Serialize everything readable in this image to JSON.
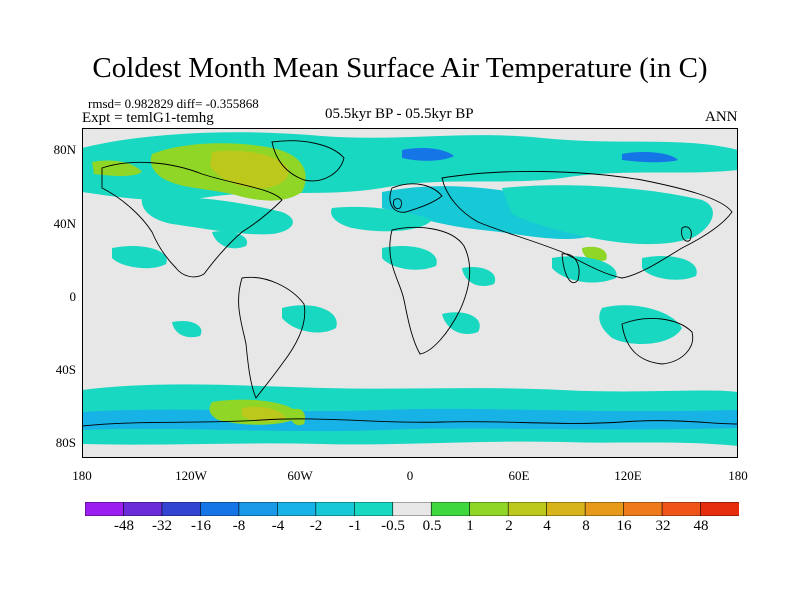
{
  "title": "Coldest Month Mean Surface Air Temperature (in C)",
  "stats_text": "rmsd= 0.982829 diff= -0.355868",
  "experiment_text": "Expt = temlG1-temhg",
  "period_text": "05.5kyr BP - 05.5kyr BP",
  "season_text": "ANN",
  "lat_ticks": [
    "80N",
    "40N",
    "0",
    "40S",
    "80S"
  ],
  "lon_ticks": [
    "180",
    "120W",
    "60W",
    "0",
    "60E",
    "120E",
    "180"
  ],
  "colorbar": {
    "colors": [
      "#9b1df0",
      "#6a2bd9",
      "#3344d2",
      "#1575e6",
      "#1a98e8",
      "#17b2e6",
      "#17c8d6",
      "#19d8c1",
      "#e7e7e7",
      "#3ed83e",
      "#8fd626",
      "#bcc81b",
      "#d6b41a",
      "#e79a1a",
      "#ee7a1a",
      "#ef5518",
      "#e52d0e"
    ],
    "labels": [
      "-48",
      "-32",
      "-16",
      "-8",
      "-4",
      "-2",
      "-1",
      "-0.5",
      "0.5",
      "1",
      "2",
      "4",
      "8",
      "16",
      "32",
      "48"
    ]
  },
  "map_colors": {
    "background": "#e7e7e7",
    "cyan": "#19d8c1",
    "teal": "#17c8d6",
    "lightblue": "#17b2e6",
    "blue": "#1575e6",
    "lightgreen": "#8fd626",
    "olive": "#bcc81b",
    "coast": "#000000"
  }
}
